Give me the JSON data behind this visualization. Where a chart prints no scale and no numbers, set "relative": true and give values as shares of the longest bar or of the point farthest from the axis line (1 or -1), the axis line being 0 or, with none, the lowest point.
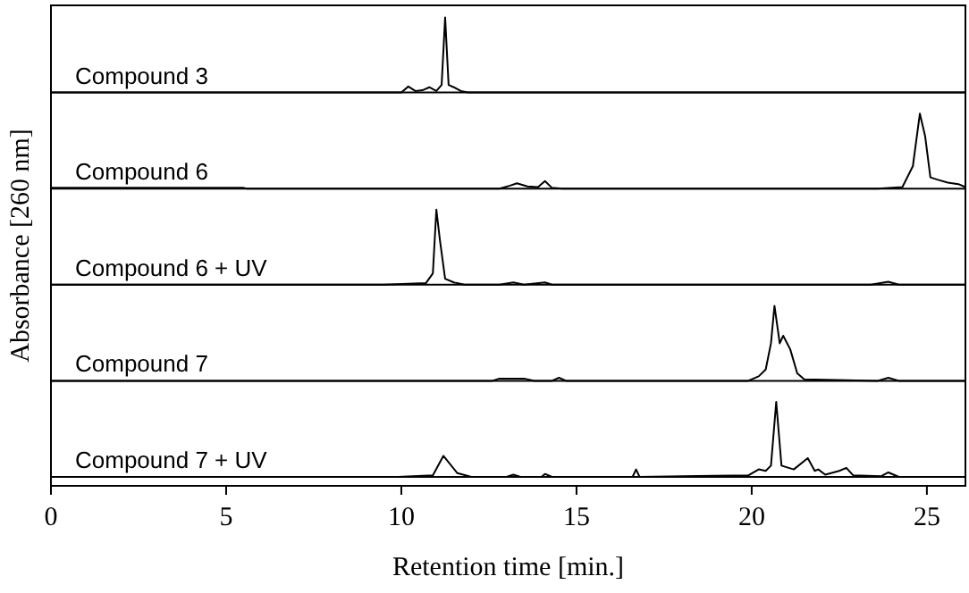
{
  "chart_data": [
    {
      "type": "line",
      "relative": true,
      "xlim": [
        0,
        26.1
      ],
      "tick_labels": false,
      "x": [
        0,
        10.0,
        10.2,
        10.4,
        10.6,
        10.8,
        11.0,
        11.15,
        11.25,
        11.35,
        11.5,
        11.7,
        11.9,
        26.1
      ],
      "series": [
        {
          "name": "Compound 3",
          "color": "#000000",
          "values": [
            0,
            0,
            0.08,
            0.02,
            0.03,
            0.07,
            0.02,
            0.1,
            1,
            0.1,
            0.07,
            0.02,
            0,
            0
          ]
        }
      ]
    },
    {
      "type": "line",
      "relative": true,
      "xlim": [
        0,
        26.1
      ],
      "tick_labels": false,
      "x": [
        0,
        5.5,
        5.6,
        12.8,
        13.1,
        13.3,
        13.6,
        13.9,
        14.1,
        14.3,
        14.6,
        23.6,
        24.3,
        24.6,
        24.8,
        24.95,
        25.1,
        25.3,
        25.6,
        25.9,
        26.1
      ],
      "series": [
        {
          "name": "Compound 6",
          "color": "#000000",
          "values": [
            0.01,
            0.01,
            0,
            0,
            0.04,
            0.07,
            0.03,
            0.02,
            0.1,
            0.01,
            0,
            0,
            0.02,
            0.3,
            1,
            0.7,
            0.15,
            0.12,
            0.08,
            0.06,
            0.02
          ]
        }
      ]
    },
    {
      "type": "line",
      "relative": true,
      "xlim": [
        0,
        26.1
      ],
      "tick_labels": false,
      "ylabel": "Absorbance [260 nm]",
      "x": [
        0,
        9.5,
        10.7,
        10.9,
        11.0,
        11.1,
        11.25,
        11.5,
        11.8,
        12.8,
        13.2,
        13.5,
        14.1,
        14.3,
        23.4,
        23.9,
        24.2,
        26.1
      ],
      "series": [
        {
          "name": "Compound 6  + UV",
          "color": "#000000",
          "values": [
            0,
            0,
            0.02,
            0.15,
            1,
            0.6,
            0.08,
            0.03,
            0,
            0,
            0.03,
            0,
            0.03,
            0,
            0,
            0.04,
            0,
            0
          ]
        }
      ]
    },
    {
      "type": "line",
      "relative": true,
      "xlim": [
        0,
        26.1
      ],
      "tick_labels": false,
      "x": [
        0,
        12.6,
        12.8,
        13.5,
        13.8,
        14.3,
        14.5,
        14.7,
        19.9,
        20.2,
        20.4,
        20.55,
        20.65,
        20.8,
        20.9,
        21.1,
        21.3,
        21.5,
        23.6,
        23.9,
        24.2,
        26.1
      ],
      "series": [
        {
          "name": "Compound 7",
          "color": "#000000",
          "values": [
            0,
            0,
            0.03,
            0.03,
            0,
            0,
            0.04,
            0,
            0,
            0.06,
            0.15,
            0.5,
            1,
            0.5,
            0.6,
            0.42,
            0.1,
            0.02,
            0,
            0.04,
            0,
            0
          ]
        }
      ]
    },
    {
      "type": "line",
      "relative": true,
      "xlim": [
        0,
        26.1
      ],
      "xticks": [
        0,
        5,
        10,
        15,
        20,
        25
      ],
      "tick_labels": "x",
      "xlabel": "Retention time [min.]",
      "x": [
        0,
        9.9,
        10.9,
        11.2,
        11.6,
        12.0,
        13.0,
        13.2,
        13.4,
        14.0,
        14.1,
        14.3,
        16.6,
        16.7,
        16.8,
        19.9,
        20.2,
        20.4,
        20.55,
        20.7,
        20.85,
        21.2,
        21.6,
        21.8,
        21.9,
        22.1,
        22.5,
        22.7,
        22.9,
        23.7,
        23.9,
        24.2,
        26.1
      ],
      "series": [
        {
          "name": "Compound 7 + UV",
          "color": "#000000",
          "values": [
            0,
            0,
            0.02,
            0.28,
            0.05,
            0,
            0,
            0.03,
            0,
            0,
            0.04,
            0,
            0,
            0.1,
            0,
            0.02,
            0.1,
            0.08,
            0.15,
            1,
            0.15,
            0.1,
            0.25,
            0.08,
            0.1,
            0.03,
            0.08,
            0.12,
            0.02,
            0.01,
            0.06,
            0,
            0
          ]
        }
      ]
    }
  ]
}
